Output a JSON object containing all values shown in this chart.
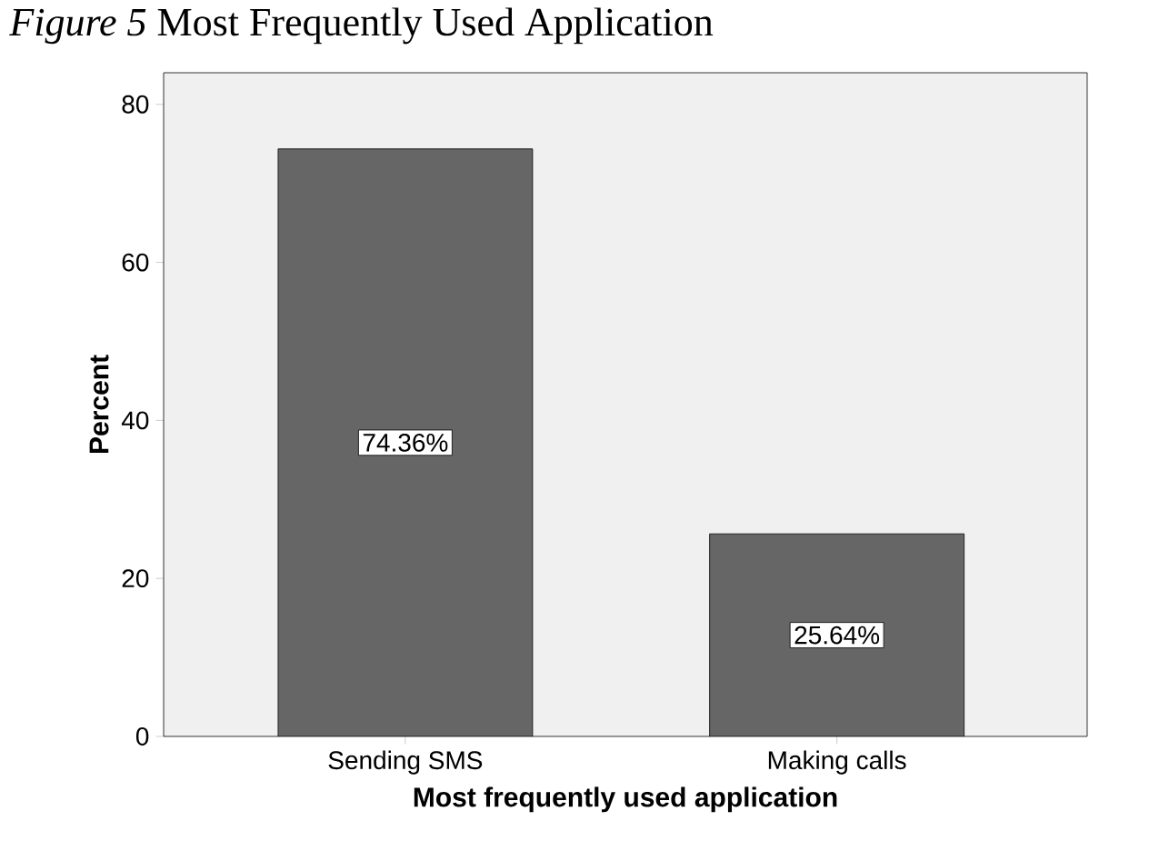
{
  "chart_data": {
    "type": "bar",
    "title": "*Figure 5* Most Frequently Used Application",
    "xlabel": "Most frequently used application",
    "ylabel": "Percent",
    "categories": [
      "Sending SMS",
      "Making calls"
    ],
    "values": [
      74.36,
      25.64
    ],
    "value_labels": [
      "74.36%",
      "25.64%"
    ],
    "color": "#666666",
    "ylim": [
      0,
      84
    ],
    "yticks": [
      0,
      20,
      40,
      60,
      80
    ],
    "grid": false
  }
}
